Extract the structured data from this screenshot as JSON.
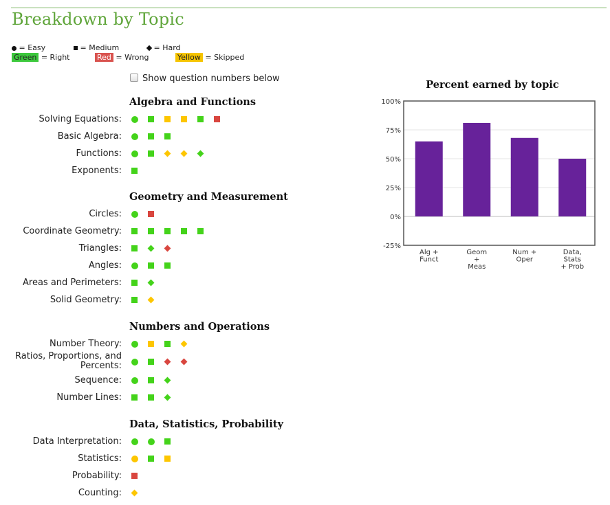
{
  "title": "Breakdown by Topic",
  "legend": {
    "difficulty": [
      {
        "shape": "circle",
        "label": "= Easy"
      },
      {
        "shape": "square",
        "label": "= Medium"
      },
      {
        "shape": "diamond",
        "label": "= Hard"
      }
    ],
    "status": [
      {
        "word": "Green",
        "label": "= Right",
        "color": "#3cc83c"
      },
      {
        "word": "Red",
        "label": "= Wrong",
        "color": "#d9534f"
      },
      {
        "word": "Yellow",
        "label": "= Skipped",
        "color": "#f5c400"
      }
    ]
  },
  "show_numbers_label": "Show question numbers below",
  "colors": {
    "right": "#44d31a",
    "wrong": "#d9463f",
    "skipped": "#fdc600",
    "bar": "#67229a"
  },
  "sections": [
    {
      "title": "Algebra and Functions",
      "topics": [
        {
          "label": "Solving Equations:",
          "marks": [
            [
              "circle",
              "right"
            ],
            [
              "square",
              "right"
            ],
            [
              "square",
              "skipped"
            ],
            [
              "square",
              "skipped"
            ],
            [
              "square",
              "right"
            ],
            [
              "square",
              "wrong"
            ]
          ]
        },
        {
          "label": "Basic Algebra:",
          "marks": [
            [
              "circle",
              "right"
            ],
            [
              "square",
              "right"
            ],
            [
              "square",
              "right"
            ]
          ]
        },
        {
          "label": "Functions:",
          "marks": [
            [
              "circle",
              "right"
            ],
            [
              "square",
              "right"
            ],
            [
              "diamond",
              "skipped"
            ],
            [
              "diamond",
              "skipped"
            ],
            [
              "diamond",
              "right"
            ]
          ]
        },
        {
          "label": "Exponents:",
          "marks": [
            [
              "square",
              "right"
            ]
          ]
        }
      ]
    },
    {
      "title": "Geometry and Measurement",
      "topics": [
        {
          "label": "Circles:",
          "marks": [
            [
              "circle",
              "right"
            ],
            [
              "square",
              "wrong"
            ]
          ]
        },
        {
          "label": "Coordinate Geometry:",
          "marks": [
            [
              "square",
              "right"
            ],
            [
              "square",
              "right"
            ],
            [
              "square",
              "right"
            ],
            [
              "square",
              "right"
            ],
            [
              "square",
              "right"
            ]
          ]
        },
        {
          "label": "Triangles:",
          "marks": [
            [
              "square",
              "right"
            ],
            [
              "diamond",
              "right"
            ],
            [
              "diamond",
              "wrong"
            ]
          ]
        },
        {
          "label": "Angles:",
          "marks": [
            [
              "circle",
              "right"
            ],
            [
              "square",
              "right"
            ],
            [
              "square",
              "right"
            ]
          ]
        },
        {
          "label": "Areas and Perimeters:",
          "marks": [
            [
              "square",
              "right"
            ],
            [
              "diamond",
              "right"
            ]
          ]
        },
        {
          "label": "Solid Geometry:",
          "marks": [
            [
              "square",
              "right"
            ],
            [
              "diamond",
              "skipped"
            ]
          ]
        }
      ]
    },
    {
      "title": "Numbers and Operations",
      "topics": [
        {
          "label": "Number Theory:",
          "marks": [
            [
              "circle",
              "right"
            ],
            [
              "square",
              "skipped"
            ],
            [
              "square",
              "right"
            ],
            [
              "diamond",
              "skipped"
            ]
          ]
        },
        {
          "label": "Ratios, Proportions, and Percents:",
          "marks": [
            [
              "circle",
              "right"
            ],
            [
              "square",
              "right"
            ],
            [
              "diamond",
              "wrong"
            ],
            [
              "diamond",
              "wrong"
            ]
          ]
        },
        {
          "label": "Sequence:",
          "marks": [
            [
              "circle",
              "right"
            ],
            [
              "square",
              "right"
            ],
            [
              "diamond",
              "right"
            ]
          ]
        },
        {
          "label": "Number Lines:",
          "marks": [
            [
              "square",
              "right"
            ],
            [
              "square",
              "right"
            ],
            [
              "diamond",
              "right"
            ]
          ]
        }
      ]
    },
    {
      "title": "Data, Statistics, Probability",
      "topics": [
        {
          "label": "Data Interpretation:",
          "marks": [
            [
              "circle",
              "right"
            ],
            [
              "circle",
              "right"
            ],
            [
              "square",
              "right"
            ]
          ]
        },
        {
          "label": "Statistics:",
          "marks": [
            [
              "circle",
              "skipped"
            ],
            [
              "square",
              "right"
            ],
            [
              "square",
              "skipped"
            ]
          ]
        },
        {
          "label": "Probability:",
          "marks": [
            [
              "square",
              "wrong"
            ]
          ]
        },
        {
          "label": "Counting:",
          "marks": [
            [
              "diamond",
              "skipped"
            ]
          ]
        }
      ]
    }
  ],
  "chart_data": {
    "type": "bar",
    "title": "Percent earned by topic",
    "categories": [
      [
        "Alg +",
        "Funct"
      ],
      [
        "Geom",
        "+",
        "Meas"
      ],
      [
        "Num +",
        "Oper"
      ],
      [
        "Data,",
        "Stats",
        "+ Prob"
      ]
    ],
    "values": [
      65,
      81,
      68,
      50
    ],
    "ylim": [
      -25,
      100
    ],
    "yticks": [
      "100%",
      "75%",
      "50%",
      "25%",
      "0%",
      "-25%"
    ],
    "grid": true
  }
}
